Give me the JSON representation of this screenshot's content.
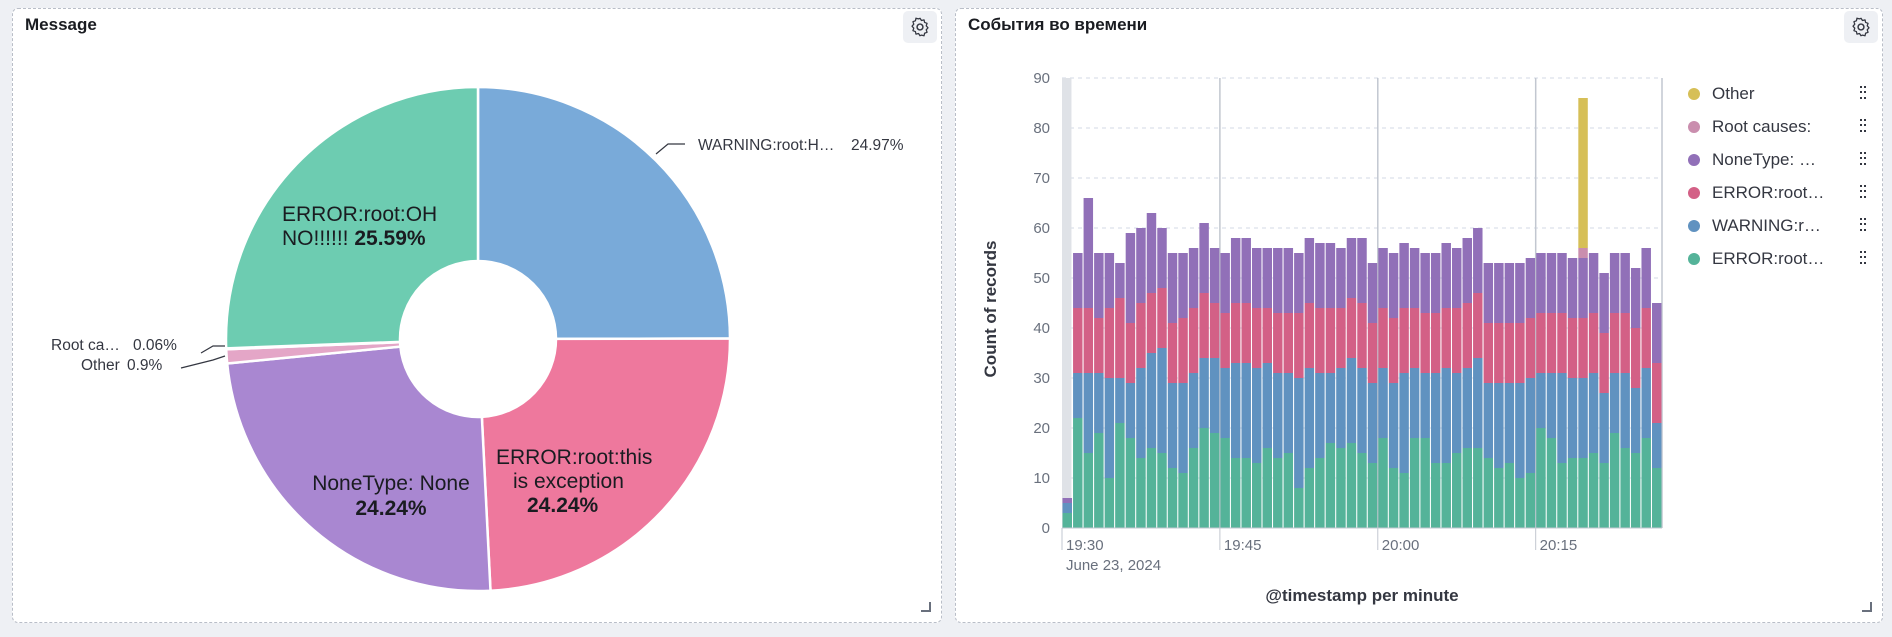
{
  "panels": {
    "left_title": "Message",
    "right_title": "События во времени"
  },
  "icons": {
    "settings": "gear-icon",
    "resize": "resize-handle-icon",
    "legend_menu": "vertical-dots-icon"
  },
  "chart_data": [
    {
      "type": "pie",
      "title": "Message",
      "donut": true,
      "slices": [
        {
          "label": "WARNING:root:H…",
          "value": 24.97,
          "value_label": "24.97%",
          "color": "#79aad9"
        },
        {
          "label": "ERROR:root:this is exception",
          "value": 24.24,
          "value_label": "24.24%",
          "color": "#ee789d"
        },
        {
          "label": "NoneType: None",
          "value": 24.24,
          "value_label": "24.24%",
          "color": "#a987d1"
        },
        {
          "label": "Other",
          "value": 0.9,
          "value_label": "0.9%",
          "color": "#e4a6c7"
        },
        {
          "label": "Root ca…",
          "value": 0.06,
          "value_label": "0.06%",
          "color": "#d6bf57"
        },
        {
          "label": "ERROR:root:OH NO!!!!!!",
          "value": 25.59,
          "value_label": "25.59%",
          "color": "#6dccb1"
        }
      ]
    },
    {
      "type": "bar",
      "stacked": true,
      "title": "События во времени",
      "xlabel": "@timestamp per minute",
      "ylabel": "Count of records",
      "ylim": [
        0,
        90
      ],
      "yticks": [
        "0",
        "10",
        "20",
        "30",
        "40",
        "50",
        "60",
        "70",
        "80",
        "90"
      ],
      "xticks": [
        {
          "label": "19:30",
          "index": 0
        },
        {
          "label": "19:45",
          "index": 15
        },
        {
          "label": "20:00",
          "index": 30
        },
        {
          "label": "20:15",
          "index": 45
        }
      ],
      "date_label": "June 23, 2024",
      "series": [
        {
          "name": "ERROR:root…",
          "color": "#54b399",
          "values": [
            3,
            22,
            15,
            19,
            10,
            21,
            18,
            14,
            16,
            15,
            12,
            11,
            16,
            20,
            19,
            18,
            14,
            14,
            13,
            16,
            14,
            15,
            8,
            12,
            14,
            17,
            16,
            17,
            15,
            13,
            18,
            12,
            11,
            18,
            18,
            13,
            13,
            15,
            16,
            16,
            14,
            12,
            13,
            10,
            11,
            20,
            18,
            13,
            14,
            14,
            15,
            13,
            19,
            16,
            15,
            18,
            12
          ]
        },
        {
          "name": "WARNING:r…",
          "color": "#6092c0",
          "values": [
            2,
            9,
            16,
            12,
            20,
            9,
            11,
            18,
            19,
            21,
            17,
            18,
            15,
            14,
            15,
            14,
            19,
            19,
            19,
            17,
            17,
            16,
            22,
            20,
            17,
            14,
            16,
            17,
            17,
            16,
            14,
            17,
            20,
            14,
            13,
            18,
            19,
            16,
            16,
            18,
            15,
            17,
            16,
            19,
            19,
            11,
            13,
            18,
            16,
            16,
            16,
            14,
            12,
            15,
            13,
            14,
            9
          ]
        },
        {
          "name": "ERROR:root…",
          "color": "#d36086",
          "values": [
            0,
            13,
            13,
            11,
            14,
            16,
            12,
            13,
            12,
            12,
            12,
            13,
            13,
            13,
            11,
            11,
            12,
            12,
            12,
            11,
            12,
            12,
            13,
            13,
            13,
            13,
            12,
            12,
            13,
            12,
            12,
            13,
            13,
            12,
            12,
            12,
            12,
            13,
            13,
            13,
            12,
            12,
            12,
            12,
            12,
            12,
            12,
            12,
            12,
            12,
            12,
            12,
            12,
            12,
            12,
            12,
            12
          ]
        },
        {
          "name": "NoneType: …",
          "color": "#9170b8",
          "values": [
            1,
            11,
            22,
            13,
            11,
            7,
            18,
            15,
            16,
            12,
            14,
            13,
            12,
            14,
            11,
            12,
            13,
            13,
            12,
            12,
            13,
            13,
            12,
            13,
            13,
            13,
            12,
            12,
            13,
            12,
            12,
            13,
            13,
            12,
            12,
            12,
            13,
            12,
            13,
            13,
            12,
            12,
            12,
            12,
            12,
            12,
            12,
            12,
            12,
            12,
            12,
            12,
            12,
            12,
            12,
            12,
            12
          ]
        },
        {
          "name": "Root causes:",
          "color": "#ca8eae",
          "values": [
            0,
            0,
            0,
            0,
            0,
            0,
            0,
            0,
            0,
            0,
            0,
            0,
            0,
            0,
            0,
            0,
            0,
            0,
            0,
            0,
            0,
            0,
            0,
            0,
            0,
            0,
            0,
            0,
            0,
            0,
            0,
            0,
            0,
            0,
            0,
            0,
            0,
            0,
            0,
            0,
            0,
            0,
            0,
            0,
            0,
            0,
            0,
            0,
            0,
            2,
            0,
            0,
            0,
            0,
            0,
            0,
            0
          ]
        },
        {
          "name": "Other",
          "color": "#d6bf57",
          "values": [
            0,
            0,
            0,
            0,
            0,
            0,
            0,
            0,
            0,
            0,
            0,
            0,
            0,
            0,
            0,
            0,
            0,
            0,
            0,
            0,
            0,
            0,
            0,
            0,
            0,
            0,
            0,
            0,
            0,
            0,
            0,
            0,
            0,
            0,
            0,
            0,
            0,
            0,
            0,
            0,
            0,
            0,
            0,
            0,
            0,
            0,
            0,
            0,
            0,
            30,
            0,
            0,
            0,
            0,
            0,
            0,
            0
          ]
        }
      ],
      "legend": [
        "Other",
        "Root causes:",
        "NoneType: …",
        "ERROR:root…",
        "WARNING:r…",
        "ERROR:root…"
      ],
      "legend_colors": [
        "#d6bf57",
        "#ca8eae",
        "#9170b8",
        "#d36086",
        "#6092c0",
        "#54b399"
      ]
    }
  ]
}
